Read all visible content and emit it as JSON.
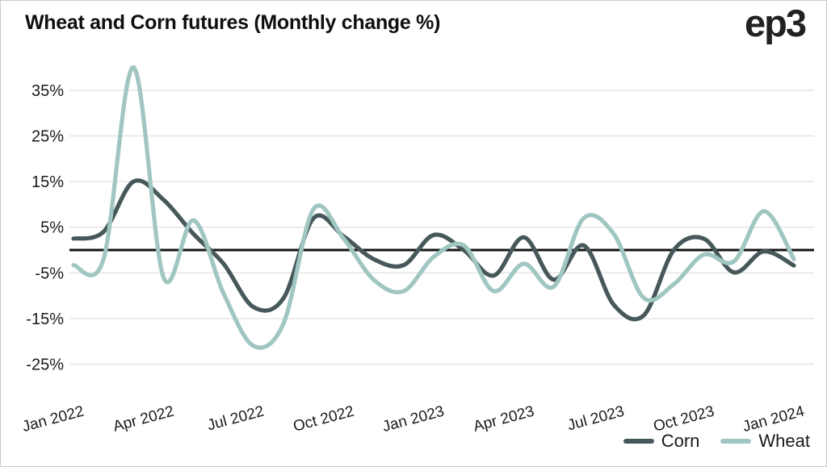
{
  "header": {
    "title": "Wheat and Corn futures (Monthly change %)",
    "logo": "ep3"
  },
  "chart_data": {
    "type": "line",
    "title": "Wheat and Corn futures (Monthly change %)",
    "x": [
      "Jan 2022",
      "Feb 2022",
      "Mar 2022",
      "Apr 2022",
      "May 2022",
      "Jun 2022",
      "Jul 2022",
      "Aug 2022",
      "Sep 2022",
      "Oct 2022",
      "Nov 2022",
      "Dec 2022",
      "Jan 2023",
      "Feb 2023",
      "Mar 2023",
      "Apr 2023",
      "May 2023",
      "Jun 2023",
      "Jul 2023",
      "Aug 2023",
      "Sep 2023",
      "Oct 2023",
      "Nov 2023",
      "Dec 2023",
      "Jan 2024"
    ],
    "x_tick_labels": [
      "Jan 2022",
      "Apr 2022",
      "Jul 2022",
      "Oct 2022",
      "Jan 2023",
      "Apr 2023",
      "Jul 2023",
      "Oct 2023",
      "Jan 2024"
    ],
    "y_ticks": [
      35,
      25,
      15,
      5,
      -5,
      -15,
      -25
    ],
    "y_tick_labels": [
      "35%",
      "25%",
      "15%",
      "5%",
      "-5%",
      "-15%",
      "-25%"
    ],
    "ylim": [
      -27,
      42
    ],
    "grid": "horizontal",
    "zero_line": true,
    "legend_position": "bottom-right",
    "series": [
      {
        "name": "Corn",
        "color": "#46585a",
        "values": [
          2.5,
          4,
          15,
          11,
          3.5,
          -3,
          -12.5,
          -10.5,
          7,
          3,
          -2,
          -3.3,
          3.3,
          0,
          -5.6,
          2.8,
          -6.5,
          1,
          -12,
          -14.3,
          0,
          2.5,
          -4.9,
          -0.3,
          -3.4
        ]
      },
      {
        "name": "Wheat",
        "color": "#a0c6c1",
        "values": [
          -3.3,
          -2,
          40,
          -6,
          6.5,
          -9.5,
          -21,
          -16,
          9,
          2.5,
          -6.5,
          -9,
          -1.5,
          1,
          -9,
          -3,
          -8,
          7,
          3.5,
          -10.5,
          -7.5,
          -1,
          -2.5,
          8.5,
          -2
        ]
      }
    ],
    "colors": {
      "grid": "#e4e4e4",
      "zero_line": "#141414",
      "text": "#1a1a1a",
      "background": "#ffffff"
    }
  }
}
